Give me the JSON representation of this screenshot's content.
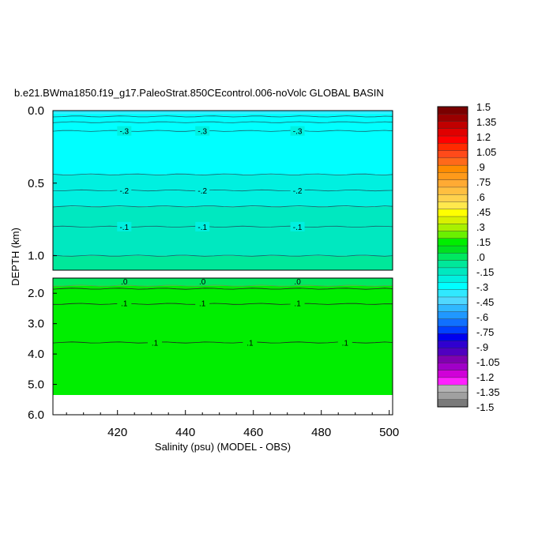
{
  "chart_data": {
    "type": "heatmap",
    "title": "b.e21.BWma1850.f19_g17.PaleoStrat.850CEcontrol.006-noVolc GLOBAL BASIN",
    "xlabel": "Salinity (psu) (MODEL - OBS)",
    "ylabel": "DEPTH (km)",
    "x_range": [
      401,
      501
    ],
    "x_ticks": [
      420,
      440,
      460,
      480,
      500
    ],
    "upper_panel": {
      "depth_range": [
        0.0,
        1.1
      ],
      "y_ticks": [
        0.0,
        0.5,
        1.0
      ],
      "y_tick_labels": [
        "0.0",
        "0.5",
        "1.0"
      ],
      "bands": [
        {
          "from": 0.0,
          "to": 0.02,
          "value": -0.4
        },
        {
          "from": 0.02,
          "to": 0.44,
          "value": -0.3
        },
        {
          "from": 0.44,
          "to": 0.66,
          "value": -0.2
        },
        {
          "from": 0.66,
          "to": 1.0,
          "value": -0.1
        },
        {
          "from": 1.0,
          "to": 1.1,
          "value": -0.05
        }
      ],
      "contours": [
        {
          "depth": 0.04,
          "label": ""
        },
        {
          "depth": 0.08,
          "label": ""
        },
        {
          "depth": 0.14,
          "label": "-.3"
        },
        {
          "depth": 0.44,
          "label": ""
        },
        {
          "depth": 0.55,
          "label": "-.2"
        },
        {
          "depth": 0.66,
          "label": ""
        },
        {
          "depth": 0.8,
          "label": "-.1"
        },
        {
          "depth": 1.0,
          "label": ""
        }
      ],
      "label_x": [
        422,
        445,
        473
      ]
    },
    "lower_panel": {
      "depth_range": [
        1.5,
        6.0
      ],
      "data_depth_max": 5.35,
      "y_ticks": [
        2.0,
        3.0,
        4.0,
        5.0,
        6.0
      ],
      "y_tick_labels": [
        "2.0",
        "3.0",
        "4.0",
        "5.0",
        "6.0"
      ],
      "bands": [
        {
          "from": 1.5,
          "to": 1.75,
          "value": 0.05
        },
        {
          "from": 1.75,
          "to": 5.35,
          "value": 0.15
        }
      ],
      "contours": [
        {
          "depth": 1.75,
          "label": "",
          "color": "#5a9a5a"
        },
        {
          "depth": 1.85,
          "label": "",
          "color": "#222222"
        },
        {
          "depth": 2.35,
          "label": ".1",
          "label_depth": 2.32,
          "color": "#222222"
        },
        {
          "depth": 3.62,
          "label": ".1",
          "color": "#222222"
        }
      ],
      "top_labels": {
        "depth": 1.6,
        "text": ".0"
      },
      "label_x": [
        422,
        445,
        473
      ],
      "deep_label_x": [
        431,
        459,
        487
      ]
    },
    "colorbar": {
      "labels": [
        "1.5",
        "1.35",
        "1.2",
        "1.05",
        ".9",
        ".75",
        ".6",
        ".45",
        ".3",
        ".15",
        ".0",
        "-.15",
        "-.3",
        "-.45",
        "-.6",
        "-.75",
        "-.9",
        "-1.05",
        "-1.2",
        "-1.35",
        "-1.5"
      ],
      "colors": [
        "#7a0000",
        "#9a0000",
        "#c00000",
        "#e00000",
        "#ff0000",
        "#ff2a00",
        "#ff4a1a",
        "#ff6a1a",
        "#ff8c00",
        "#ff9a1a",
        "#ffaa33",
        "#ffbf40",
        "#ffd24d",
        "#ffe84d",
        "#ffff00",
        "#d8f000",
        "#a8f000",
        "#6af000",
        "#00ee00",
        "#00e020",
        "#00e860",
        "#00e89a",
        "#00e8c0",
        "#00f0e0",
        "#00ffff",
        "#30e8ff",
        "#50d8ff",
        "#30b8ff",
        "#2098ff",
        "#1070ff",
        "#0040ff",
        "#0000ee",
        "#3000d0",
        "#5000c0",
        "#8000b0",
        "#a000c8",
        "#d000d8",
        "#ff20ff",
        "#b4b4b4",
        "#a0a0a0",
        "#7a7a7a"
      ]
    },
    "colormap": [
      {
        "max": -0.35,
        "color": "#30e8ff"
      },
      {
        "max": -0.25,
        "color": "#00ffff"
      },
      {
        "max": -0.15,
        "color": "#00f0e0"
      },
      {
        "max": -0.07,
        "color": "#00e8c0"
      },
      {
        "max": 0.0,
        "color": "#00e89a"
      },
      {
        "max": 0.1,
        "color": "#00e860"
      },
      {
        "max": 1.0,
        "color": "#00ee00"
      }
    ]
  }
}
